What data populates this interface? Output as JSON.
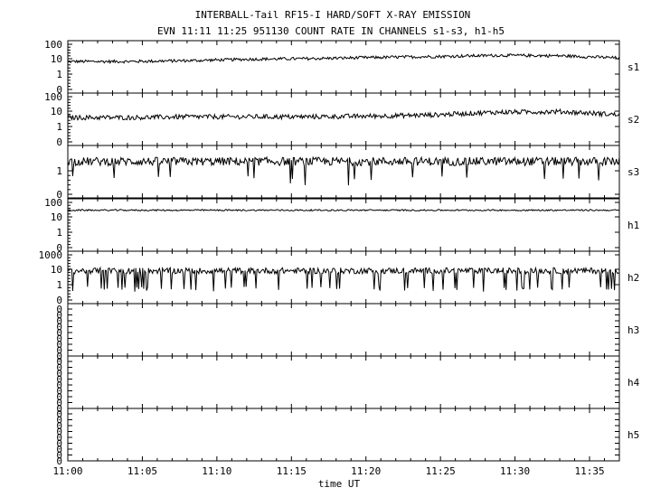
{
  "chart_data": {
    "type": "line",
    "title": "INTERBALL-Tail RF15-I HARD/SOFT X-RAY EMISSION",
    "subtitle": "EVN 11:11 11:25 951130  COUNT RATE IN CHANNELS s1-s3, h1-h5",
    "xlabel": "time UT",
    "x_tick_labels": [
      "11:00",
      "11:05",
      "11:10",
      "11:15",
      "11:20",
      "11:25",
      "11:30",
      "11:35"
    ],
    "x_range_minutes": [
      0,
      37
    ],
    "y_scale": "log",
    "panels": [
      {
        "name": "s1",
        "y_tick_labels": [
          "100",
          "10",
          "1",
          "0"
        ],
        "level": [
          7,
          7,
          8,
          10,
          11,
          13,
          15,
          18,
          17,
          12
        ],
        "noise": 0.1,
        "dropout_rate": 0.0,
        "dropout_value": 1
      },
      {
        "name": "s2",
        "y_tick_labels": [
          "100",
          "10",
          "1",
          "0"
        ],
        "level": [
          4,
          4,
          4.5,
          4.5,
          4.5,
          5,
          6,
          9,
          10,
          6
        ],
        "noise": 0.16,
        "dropout_rate": 0.0,
        "dropout_value": 1
      },
      {
        "name": "s3",
        "y_tick_labels": [
          "1",
          "0"
        ],
        "level": [
          2.5,
          2.5,
          2.5,
          2.5,
          2.5,
          2.5,
          2.5,
          2.5,
          2.5,
          2.5
        ],
        "noise": 0.18,
        "dropout_rate": 0.05,
        "dropout_value": 0.4
      },
      {
        "name": "h1",
        "y_tick_labels": [
          "100",
          "10",
          "1",
          "0"
        ],
        "level": [
          30,
          30,
          30,
          30,
          30,
          30,
          30,
          30,
          30,
          30
        ],
        "noise": 0.05,
        "dropout_rate": 0.0,
        "dropout_value": 1
      },
      {
        "name": "h2",
        "y_tick_labels": [
          "1000",
          "10",
          "1",
          "0"
        ],
        "level": [
          25,
          25,
          25,
          25,
          25,
          25,
          25,
          25,
          25,
          25
        ],
        "noise": 0.3,
        "dropout_rate": 0.1,
        "dropout_value": 0.4
      },
      {
        "name": "h3",
        "y_tick_labels": [
          "0",
          "0",
          "0",
          "0",
          "0",
          "0",
          "0",
          "0",
          "0"
        ],
        "level": [],
        "noise": 0,
        "dropout_rate": 0,
        "dropout_value": 0
      },
      {
        "name": "h4",
        "y_tick_labels": [
          "0",
          "0",
          "0",
          "0",
          "0",
          "0",
          "0",
          "0",
          "0"
        ],
        "level": [],
        "noise": 0,
        "dropout_rate": 0,
        "dropout_value": 0
      },
      {
        "name": "h5",
        "y_tick_labels": [
          "0",
          "0",
          "0",
          "0",
          "0",
          "0",
          "0",
          "0",
          "0"
        ],
        "level": [],
        "noise": 0,
        "dropout_rate": 0,
        "dropout_value": 0
      }
    ],
    "grid": false,
    "legend": "none"
  }
}
